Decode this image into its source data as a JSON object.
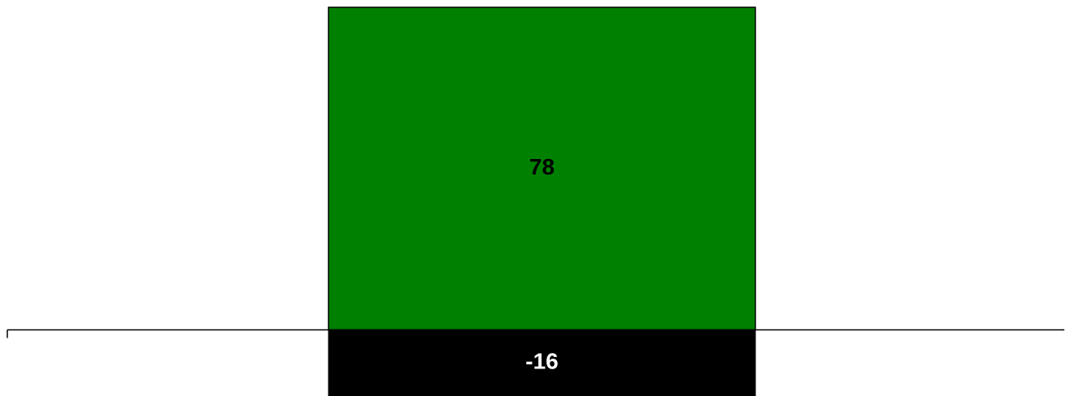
{
  "chart_data": {
    "type": "bar",
    "orientation": "vertical",
    "stacked": true,
    "categories": [
      ""
    ],
    "series": [
      {
        "values": [
          78
        ],
        "color": "#008000",
        "label_color": "#000000"
      },
      {
        "values": [
          -16
        ],
        "color": "#000000",
        "label_color": "#ffffff"
      }
    ],
    "data_labels": [
      "78",
      "-16"
    ],
    "ylim": [
      -16,
      78
    ],
    "grid": false,
    "legend": "none",
    "title": "",
    "xlabel": "",
    "ylabel": ""
  }
}
